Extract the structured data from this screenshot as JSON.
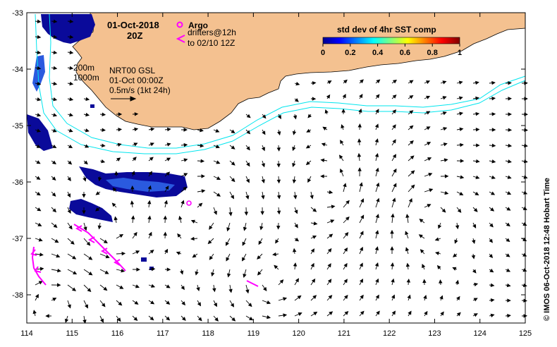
{
  "title": {
    "date": "01-Oct-2018",
    "time": "20Z"
  },
  "legend_argo": {
    "label": "Argo",
    "drifters": "drifters@12h",
    "drifters_to": "to 02/10 12Z",
    "argo_color": "#ff00ff",
    "drifter_color": "#ff00ff"
  },
  "isobaths": {
    "shallow": "200m",
    "deep": "1000m",
    "color": "#00e5ee"
  },
  "current_info": {
    "product": "NRT00 GSL",
    "time": "01-Oct 00:00Z",
    "scale": "0.5m/s (1kt 24h)"
  },
  "colorbar": {
    "title": "std dev of 4hr SST comp",
    "ticks": [
      "0",
      "0.2",
      "0.4",
      "0.6",
      "0.8",
      "1"
    ]
  },
  "x_axis": {
    "ticks": [
      "114",
      "115",
      "116",
      "117",
      "118",
      "119",
      "120",
      "121",
      "122",
      "123",
      "124",
      "125"
    ]
  },
  "y_axis": {
    "ticks": [
      "-33",
      "-34",
      "-35",
      "-36",
      "-37",
      "-38"
    ]
  },
  "credit": "© IMOS 06-Oct-2018 12:48 Hobart Time",
  "colors": {
    "land": "#f4c190",
    "sst_dark": "#0a0a9a",
    "sst_mid": "#2a5adf",
    "arrow": "#000000"
  }
}
